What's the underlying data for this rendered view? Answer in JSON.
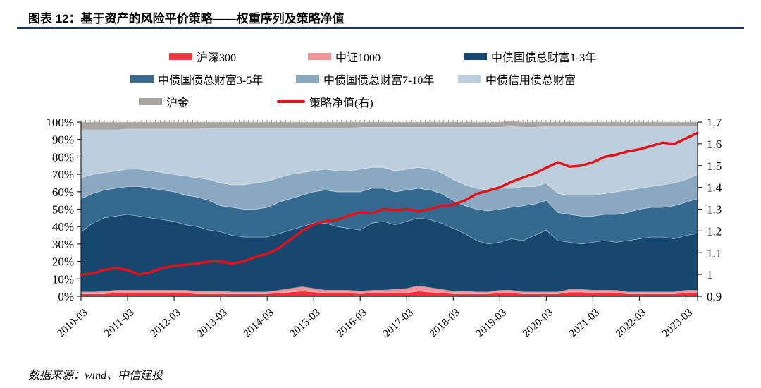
{
  "header": {
    "title": "图表 12：基于资产的风险平价策略——权重序列及策略净值"
  },
  "source_note": "数据来源：wind、中信建投",
  "legend": {
    "rows": [
      [
        {
          "label": "沪深300",
          "color": "#e93a41",
          "type": "box"
        },
        {
          "label": "中证1000",
          "color": "#f2979b",
          "type": "box"
        },
        {
          "label": "中债国债总财富1-3年",
          "color": "#17466f",
          "type": "box"
        }
      ],
      [
        {
          "label": "中债国债总财富3-5年",
          "color": "#35698f",
          "type": "box"
        },
        {
          "label": "中债国债总财富7-10年",
          "color": "#8aa9c1",
          "type": "box"
        },
        {
          "label": "中债信用债总财富",
          "color": "#bdcedc",
          "type": "box"
        }
      ],
      [
        {
          "label": "沪金",
          "color": "#a7a4a1",
          "type": "box"
        },
        {
          "label": "策略净值(右)",
          "color": "#e90e15",
          "type": "line"
        }
      ]
    ]
  },
  "chart_data": {
    "type": "stacked-area+line",
    "title": "基于资产的风险平价策略——权重序列及策略净值",
    "x": [
      "2010-03",
      "2010-06",
      "2010-09",
      "2010-12",
      "2011-03",
      "2011-06",
      "2011-09",
      "2011-12",
      "2012-03",
      "2012-06",
      "2012-09",
      "2012-12",
      "2013-03",
      "2013-06",
      "2013-09",
      "2013-12",
      "2014-03",
      "2014-06",
      "2014-09",
      "2014-12",
      "2015-03",
      "2015-06",
      "2015-09",
      "2015-12",
      "2016-03",
      "2016-06",
      "2016-09",
      "2016-12",
      "2017-03",
      "2017-06",
      "2017-09",
      "2017-12",
      "2018-03",
      "2018-06",
      "2018-09",
      "2018-12",
      "2019-03",
      "2019-06",
      "2019-09",
      "2019-12",
      "2020-03",
      "2020-06",
      "2020-09",
      "2020-12",
      "2021-03",
      "2021-06",
      "2021-09",
      "2021-12",
      "2022-03",
      "2022-06",
      "2022-09",
      "2022-12",
      "2023-03",
      "2023-06"
    ],
    "x_tick_labels": [
      "2010-03",
      "2011-03",
      "2012-03",
      "2013-03",
      "2014-03",
      "2015-03",
      "2016-03",
      "2017-03",
      "2018-03",
      "2019-03",
      "2020-03",
      "2021-03",
      "2022-03",
      "2023-03"
    ],
    "stack_series": [
      {
        "id": "hs300",
        "name": "沪深300",
        "color": "#ee2e38",
        "values": [
          1.5,
          1.5,
          1.5,
          2,
          2,
          2,
          2,
          2,
          2,
          2,
          1.5,
          1.5,
          1.5,
          1.5,
          1.5,
          1.5,
          1.5,
          2,
          2.5,
          3,
          2.5,
          2,
          2,
          2,
          1.5,
          2,
          2,
          2,
          2,
          3,
          2.5,
          2,
          1.5,
          1.5,
          1.5,
          1.5,
          2,
          2,
          1.5,
          1.5,
          1.5,
          1.5,
          2.5,
          2.5,
          2,
          2,
          2,
          1.5,
          1.5,
          1.5,
          1.5,
          1.5,
          2,
          2
        ]
      },
      {
        "id": "zz1000",
        "name": "中证1000",
        "color": "#f5949a",
        "values": [
          1,
          1,
          1.2,
          1.5,
          1.5,
          1.5,
          1.5,
          1.5,
          1.5,
          1.5,
          1.5,
          1.5,
          1.5,
          1,
          1,
          1,
          1,
          1.5,
          2,
          2.5,
          2,
          1.5,
          1.5,
          1.5,
          1.5,
          1.5,
          1.5,
          2,
          2.5,
          3,
          2.5,
          2,
          1.5,
          1.5,
          1,
          1,
          1.5,
          1.5,
          1,
          1,
          1,
          1,
          1.5,
          1.5,
          1.5,
          1.5,
          1.5,
          1,
          1,
          1,
          1,
          1,
          1.5,
          1.5
        ]
      },
      {
        "id": "gz-1-3y",
        "name": "中债国债总财富1-3年",
        "color": "#15476f",
        "values": [
          34.5,
          39.5,
          42.3,
          42.5,
          43.5,
          42.5,
          41.5,
          40.5,
          39.5,
          37.5,
          37,
          35,
          34,
          32.5,
          31.5,
          31.5,
          31.5,
          32.5,
          33.5,
          34.5,
          37.5,
          38.5,
          36.5,
          35.5,
          35,
          38.5,
          39.5,
          37,
          38.5,
          39,
          39,
          38,
          36,
          33,
          29.5,
          27.5,
          27.5,
          29.5,
          29.5,
          32.5,
          35.5,
          29.5,
          27,
          26,
          27.5,
          28.5,
          27.5,
          29.5,
          30.5,
          31.5,
          31.5,
          30.5,
          31.5,
          32.5
        ]
      },
      {
        "id": "gz-3-5y",
        "name": "中债国债总财富3-5年",
        "color": "#35698f",
        "values": [
          19,
          17,
          16,
          16,
          16,
          17,
          17,
          17,
          17,
          17,
          17,
          17,
          15,
          16,
          16,
          16,
          17,
          18,
          18,
          18,
          18,
          19,
          20,
          21,
          22,
          20,
          19,
          19,
          18,
          17,
          17,
          17,
          16,
          16,
          18,
          19,
          19,
          18,
          20,
          18,
          17,
          16,
          16,
          16,
          15,
          15,
          16,
          16,
          17,
          17,
          17,
          19,
          19,
          20
        ]
      },
      {
        "id": "gz-7-10y",
        "name": "中债国债总财富7-10年",
        "color": "#8aa9c1",
        "values": [
          12,
          11,
          10,
          10,
          10,
          10,
          10,
          10,
          10,
          11,
          11,
          12,
          13,
          13,
          14,
          15,
          15,
          14,
          14,
          13,
          12,
          12,
          12,
          12,
          13,
          12,
          12,
          12,
          12,
          12,
          12,
          12,
          12,
          12,
          12,
          12,
          12,
          11,
          11,
          10,
          10,
          11,
          11,
          12,
          12,
          12,
          13,
          13,
          12,
          12,
          13,
          13,
          13,
          14
        ]
      },
      {
        "id": "credit-bond",
        "name": "中债信用债总财富",
        "color": "#bdcedc",
        "values": [
          27.5,
          25.5,
          24.5,
          23.5,
          23,
          23,
          24,
          25,
          26,
          27,
          28,
          29.5,
          31.5,
          32.5,
          32.5,
          31.5,
          30.5,
          28.5,
          26.5,
          25.5,
          24.5,
          23.5,
          24.5,
          24.5,
          24,
          23,
          23,
          25,
          24,
          23,
          24,
          26,
          30,
          33,
          35,
          36,
          35,
          35.5,
          34,
          34,
          32.5,
          38.5,
          39.5,
          39.5,
          39.5,
          38.5,
          37.5,
          36.5,
          35.5,
          34.5,
          33.5,
          32.5,
          30.5,
          27.5
        ]
      },
      {
        "id": "gold",
        "name": "沪金",
        "color": "#a7a4a1",
        "values": [
          4.5,
          4.5,
          4.5,
          4.5,
          4,
          4,
          4,
          4,
          4,
          4,
          4,
          3.5,
          3.5,
          3.5,
          3.5,
          3.5,
          3.5,
          3.5,
          3.5,
          3.5,
          3.5,
          3.5,
          3.5,
          3.5,
          3,
          3,
          3,
          3,
          3,
          3,
          3,
          3,
          3,
          3,
          3,
          3,
          3,
          3,
          3,
          3,
          2.5,
          2.5,
          2.5,
          2.5,
          2.5,
          2.5,
          2.5,
          2.5,
          2.5,
          2.5,
          2.5,
          2.5,
          2.5,
          2.5
        ]
      }
    ],
    "line_series": {
      "id": "strategy-nav",
      "name": "策略净值(右)",
      "color": "#e90e15",
      "axis": "right",
      "values": [
        1.0,
        1.005,
        1.02,
        1.03,
        1.02,
        1.0,
        1.01,
        1.03,
        1.04,
        1.045,
        1.05,
        1.06,
        1.06,
        1.05,
        1.06,
        1.08,
        1.095,
        1.12,
        1.16,
        1.2,
        1.23,
        1.245,
        1.25,
        1.27,
        1.285,
        1.28,
        1.3,
        1.295,
        1.3,
        1.29,
        1.3,
        1.315,
        1.32,
        1.34,
        1.37,
        1.385,
        1.4,
        1.425,
        1.445,
        1.465,
        1.49,
        1.515,
        1.495,
        1.5,
        1.515,
        1.54,
        1.55,
        1.565,
        1.575,
        1.59,
        1.605,
        1.6,
        1.625,
        1.65
      ]
    },
    "left_axis": {
      "ticks": [
        "100%",
        "90%",
        "80%",
        "70%",
        "60%",
        "50%",
        "40%",
        "30%",
        "20%",
        "10%",
        "0%"
      ],
      "min": 0,
      "max": 100,
      "step": 10
    },
    "right_axis": {
      "ticks": [
        "1.7",
        "1.6",
        "1.5",
        "1.4",
        "1.3",
        "1.2",
        "1.1",
        "1",
        "0.9"
      ],
      "min": 0.9,
      "max": 1.7,
      "step": 0.1
    },
    "legend_position": "top",
    "grid": false
  }
}
